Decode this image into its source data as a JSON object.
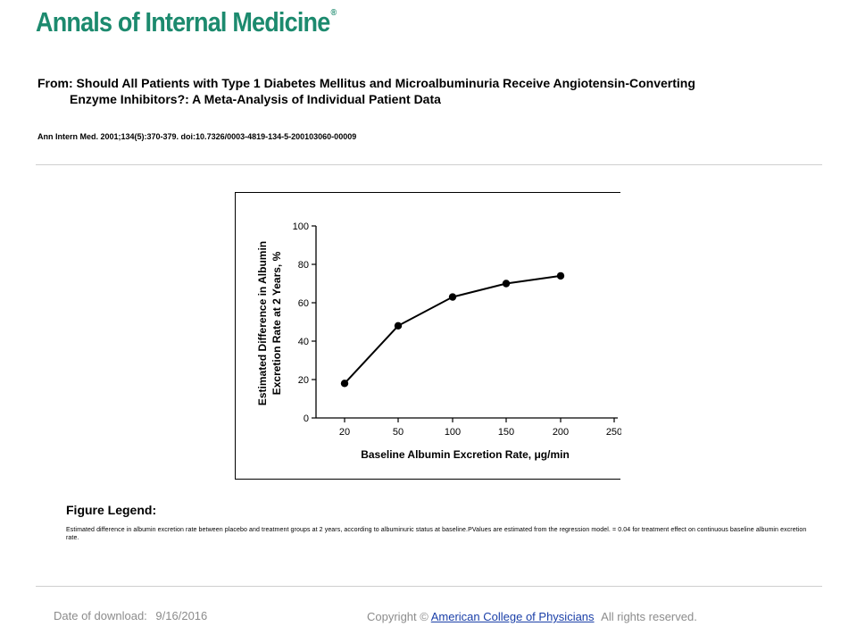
{
  "header": {
    "journal_name": "Annals of Internal Medicine",
    "registered_mark": "®"
  },
  "article": {
    "title_line1": "From: Should All Patients with Type 1 Diabetes Mellitus and Microalbuminuria Receive Angiotensin-Converting",
    "title_line2": "Enzyme Inhibitors?: A Meta-Analysis of Individual Patient Data",
    "citation": "Ann Intern Med. 2001;134(5):370-379. doi:10.7326/0003-4819-134-5-200103060-00009"
  },
  "chart_data": {
    "type": "line",
    "title": "",
    "xlabel": "Baseline Albumin Excretion Rate, μg/min",
    "ylabel_line1": "Estimated Difference in Albumin",
    "ylabel_line2": "Excretion Rate at 2 Years, %",
    "x_ticks": [
      "20",
      "50",
      "100",
      "150",
      "200",
      "250"
    ],
    "y_ticks": [
      "0",
      "20",
      "40",
      "60",
      "80",
      "100"
    ],
    "ylim": [
      0,
      100
    ],
    "grid": false,
    "series": [
      {
        "x": [
          20,
          50,
          100,
          150,
          200
        ],
        "values": [
          18,
          48,
          63,
          70,
          74
        ]
      }
    ]
  },
  "legend": {
    "heading": "Figure Legend:",
    "text": "Estimated difference in albumin excretion rate between placebo and treatment groups at 2 years, according to albuminuric status at baseline.PValues are estimated from the regression model. = 0.04 for treatment effect on continuous baseline albumin excretion rate."
  },
  "footer": {
    "download_label": "Date of download:",
    "download_date": "9/16/2016",
    "copyright_prefix": "Copyright ©",
    "copyright_link": "American College of Physicians",
    "copyright_suffix": "All rights reserved."
  },
  "colors": {
    "brand": "#1c8a6e",
    "footer_text": "#8c8c8c",
    "link": "#1a3fa8"
  }
}
